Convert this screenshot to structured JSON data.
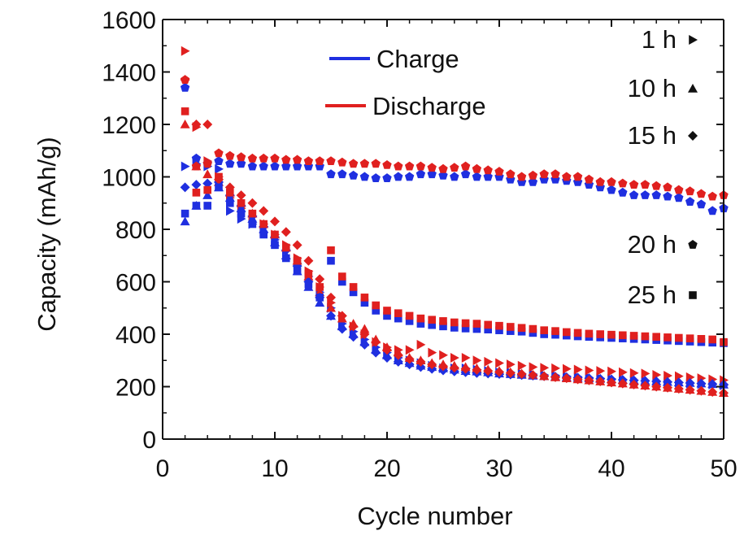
{
  "chart_data": {
    "type": "scatter",
    "xlabel": "Cycle number",
    "ylabel": "Capacity (mAh/g)",
    "xlim": [
      0,
      50
    ],
    "ylim": [
      0,
      1600
    ],
    "x_ticks": [
      0,
      10,
      20,
      30,
      40,
      50
    ],
    "y_ticks": [
      0,
      200,
      400,
      600,
      800,
      1000,
      1200,
      1400,
      1600
    ],
    "grid": false,
    "legend_colors": [
      {
        "name": "Charge",
        "color": "#1f2fe0"
      },
      {
        "name": "Discharge",
        "color": "#e0201f"
      }
    ],
    "legend_markers": [
      {
        "name": "1 h",
        "marker": "triangle-right"
      },
      {
        "name": "10 h",
        "marker": "triangle-up"
      },
      {
        "name": "15 h",
        "marker": "diamond"
      },
      {
        "name": "20 h",
        "marker": "pentagon"
      },
      {
        "name": "25 h",
        "marker": "square"
      }
    ],
    "series": [
      {
        "name": "1 h Charge",
        "marker": "triangle-right",
        "color": "#1f2fe0",
        "x": [
          2,
          3,
          4,
          5,
          6,
          7,
          8,
          9,
          10,
          11,
          12,
          13,
          14,
          15,
          16,
          17,
          18,
          19,
          20,
          21,
          22,
          23,
          24,
          25,
          26,
          27,
          28,
          29,
          30,
          31,
          32,
          33,
          34,
          35,
          36,
          37,
          38,
          39,
          40,
          41,
          42,
          43,
          44,
          45,
          46,
          47,
          48,
          49,
          50
        ],
        "y": [
          1040,
          1050,
          1040,
          1030,
          870,
          840,
          820,
          790,
          760,
          720,
          670,
          620,
          560,
          500,
          440,
          410,
          380,
          350,
          330,
          310,
          300,
          290,
          280,
          270,
          270,
          270,
          265,
          260,
          255,
          255,
          250,
          248,
          245,
          243,
          240,
          238,
          235,
          232,
          230,
          228,
          225,
          222,
          220,
          218,
          215,
          212,
          210,
          208,
          205
        ]
      },
      {
        "name": "1 h Discharge",
        "marker": "triangle-right",
        "color": "#e0201f",
        "x": [
          2,
          3,
          4,
          5,
          6,
          7,
          8,
          9,
          10,
          11,
          12,
          13,
          14,
          15,
          16,
          17,
          18,
          19,
          20,
          21,
          22,
          23,
          24,
          25,
          26,
          27,
          28,
          29,
          30,
          31,
          32,
          33,
          34,
          35,
          36,
          37,
          38,
          39,
          40,
          41,
          42,
          43,
          44,
          45,
          46,
          47,
          48,
          49,
          50
        ],
        "y": [
          1480,
          1190,
          1060,
          1000,
          920,
          880,
          850,
          820,
          780,
          740,
          690,
          640,
          580,
          520,
          470,
          430,
          400,
          370,
          350,
          340,
          340,
          360,
          330,
          320,
          310,
          310,
          300,
          295,
          290,
          285,
          280,
          275,
          272,
          270,
          268,
          265,
          262,
          260,
          258,
          255,
          252,
          250,
          245,
          242,
          240,
          236,
          232,
          228,
          225
        ]
      },
      {
        "name": "10 h Charge",
        "marker": "triangle-up",
        "color": "#1f2fe0",
        "x": [
          2,
          3,
          4,
          5,
          6,
          7,
          8,
          9,
          10,
          11,
          12,
          13,
          14,
          15,
          16,
          17,
          18,
          19,
          20,
          21,
          22,
          23,
          24,
          25,
          26,
          27,
          28,
          29,
          30,
          31,
          32,
          33,
          34,
          35,
          36,
          37,
          38,
          39,
          40,
          41,
          42,
          43,
          44,
          45,
          46,
          47,
          48,
          49,
          50
        ],
        "y": [
          830,
          890,
          930,
          960,
          920,
          880,
          840,
          800,
          750,
          700,
          640,
          580,
          520,
          470,
          430,
          400,
          370,
          340,
          320,
          300,
          290,
          280,
          275,
          270,
          265,
          260,
          258,
          255,
          250,
          248,
          245,
          242,
          240,
          238,
          236,
          234,
          232,
          230,
          228,
          226,
          224,
          222,
          220,
          218,
          216,
          214,
          212,
          210,
          208
        ]
      },
      {
        "name": "10 h Discharge",
        "marker": "triangle-up",
        "color": "#e0201f",
        "x": [
          2,
          3,
          4,
          5,
          6,
          7,
          8,
          9,
          10,
          11,
          12,
          13,
          14,
          15,
          16,
          17,
          18,
          19,
          20,
          21,
          22,
          23,
          24,
          25,
          26,
          27,
          28,
          29,
          30,
          31,
          32,
          33,
          34,
          35,
          36,
          37,
          38,
          39,
          40,
          41,
          42,
          43,
          44,
          45,
          46,
          47,
          48,
          49,
          50
        ],
        "y": [
          1200,
          1040,
          1010,
          980,
          940,
          900,
          860,
          820,
          780,
          730,
          680,
          620,
          560,
          500,
          460,
          440,
          420,
          380,
          350,
          330,
          310,
          300,
          290,
          285,
          280,
          275,
          270,
          265,
          260,
          255,
          250,
          245,
          240,
          236,
          232,
          228,
          224,
          220,
          216,
          212,
          208,
          204,
          200,
          196,
          192,
          188,
          184,
          180,
          176
        ]
      },
      {
        "name": "15 h Charge",
        "marker": "diamond",
        "color": "#1f2fe0",
        "x": [
          2,
          3,
          4,
          5,
          6,
          7,
          8,
          9,
          10,
          11,
          12,
          13,
          14,
          15,
          16,
          17,
          18,
          19,
          20,
          21,
          22,
          23,
          24,
          25,
          26,
          27,
          28,
          29,
          30,
          31,
          32,
          33,
          34,
          35,
          36,
          37,
          38,
          39,
          40,
          41,
          42,
          43,
          44,
          45,
          46,
          47,
          48,
          49,
          50
        ],
        "y": [
          960,
          970,
          975,
          980,
          930,
          890,
          850,
          810,
          770,
          720,
          660,
          600,
          540,
          470,
          420,
          390,
          360,
          330,
          310,
          295,
          285,
          275,
          268,
          262,
          258,
          255,
          252,
          250,
          248,
          246,
          244,
          242,
          240,
          238,
          236,
          234,
          232,
          230,
          228,
          226,
          224,
          222,
          220,
          218,
          216,
          214,
          212,
          210,
          208
        ]
      },
      {
        "name": "15 h Discharge",
        "marker": "diamond",
        "color": "#e0201f",
        "x": [
          2,
          3,
          4,
          5,
          6,
          7,
          8,
          9,
          10,
          11,
          12,
          13,
          14,
          15,
          16,
          17,
          18,
          19,
          20,
          21,
          22,
          23,
          24,
          25,
          26,
          27,
          28,
          29,
          30,
          31,
          32,
          33,
          34,
          35,
          36,
          37,
          38,
          39,
          40,
          41,
          42,
          43,
          44,
          45,
          46,
          47,
          48,
          49,
          50
        ],
        "y": [
          1370,
          1200,
          1200,
          990,
          960,
          930,
          900,
          870,
          830,
          790,
          740,
          680,
          610,
          540,
          470,
          430,
          400,
          370,
          340,
          320,
          305,
          295,
          285,
          278,
          272,
          268,
          264,
          260,
          256,
          252,
          248,
          244,
          240,
          236,
          232,
          228,
          224,
          220,
          216,
          212,
          208,
          204,
          200,
          196,
          192,
          188,
          184,
          180,
          176
        ]
      },
      {
        "name": "20 h Charge",
        "marker": "pentagon",
        "color": "#1f2fe0",
        "x": [
          2,
          3,
          4,
          5,
          6,
          7,
          8,
          9,
          10,
          11,
          12,
          13,
          14,
          15,
          16,
          17,
          18,
          19,
          20,
          21,
          22,
          23,
          24,
          25,
          26,
          27,
          28,
          29,
          30,
          31,
          32,
          33,
          34,
          35,
          36,
          37,
          38,
          39,
          40,
          41,
          42,
          43,
          44,
          45,
          46,
          47,
          48,
          49,
          50
        ],
        "y": [
          1340,
          1070,
          1050,
          1060,
          1050,
          1050,
          1040,
          1040,
          1040,
          1040,
          1040,
          1040,
          1040,
          1010,
          1010,
          1005,
          1000,
          995,
          995,
          1000,
          1000,
          1010,
          1010,
          1005,
          1000,
          1010,
          1000,
          1000,
          1000,
          990,
          980,
          980,
          990,
          990,
          985,
          980,
          970,
          960,
          950,
          940,
          930,
          930,
          930,
          925,
          920,
          905,
          895,
          870,
          880
        ]
      },
      {
        "name": "20 h Discharge",
        "marker": "pentagon",
        "color": "#e0201f",
        "x": [
          2,
          3,
          4,
          5,
          6,
          7,
          8,
          9,
          10,
          11,
          12,
          13,
          14,
          15,
          16,
          17,
          18,
          19,
          20,
          21,
          22,
          23,
          24,
          25,
          26,
          27,
          28,
          29,
          30,
          31,
          32,
          33,
          34,
          35,
          36,
          37,
          38,
          39,
          40,
          41,
          42,
          43,
          44,
          45,
          46,
          47,
          48,
          49,
          50
        ],
        "y": [
          1370,
          1040,
          1050,
          1090,
          1080,
          1075,
          1070,
          1070,
          1070,
          1065,
          1065,
          1060,
          1060,
          1060,
          1055,
          1050,
          1050,
          1050,
          1045,
          1040,
          1040,
          1040,
          1035,
          1030,
          1035,
          1040,
          1030,
          1025,
          1020,
          1010,
          1000,
          1005,
          1010,
          1010,
          1000,
          1000,
          990,
          980,
          980,
          975,
          970,
          970,
          965,
          960,
          950,
          945,
          935,
          925,
          930
        ]
      },
      {
        "name": "25 h Charge",
        "marker": "square",
        "color": "#1f2fe0",
        "x": [
          2,
          3,
          4,
          5,
          6,
          7,
          8,
          9,
          10,
          11,
          12,
          13,
          14,
          15,
          16,
          17,
          18,
          19,
          20,
          21,
          22,
          23,
          24,
          25,
          26,
          27,
          28,
          29,
          30,
          31,
          32,
          33,
          34,
          35,
          36,
          37,
          38,
          39,
          40,
          41,
          42,
          43,
          44,
          45,
          46,
          47,
          48,
          49,
          50
        ],
        "y": [
          860,
          890,
          890,
          960,
          900,
          860,
          820,
          780,
          740,
          690,
          640,
          590,
          540,
          680,
          600,
          560,
          520,
          490,
          470,
          460,
          450,
          440,
          435,
          430,
          425,
          422,
          420,
          418,
          415,
          412,
          410,
          405,
          400,
          398,
          395,
          392,
          390,
          388,
          386,
          384,
          382,
          380,
          378,
          376,
          374,
          372,
          370,
          368,
          366
        ]
      },
      {
        "name": "25 h Discharge",
        "marker": "square",
        "color": "#e0201f",
        "x": [
          2,
          3,
          4,
          5,
          6,
          7,
          8,
          9,
          10,
          11,
          12,
          13,
          14,
          15,
          16,
          17,
          18,
          19,
          20,
          21,
          22,
          23,
          24,
          25,
          26,
          27,
          28,
          29,
          30,
          31,
          32,
          33,
          34,
          35,
          36,
          37,
          38,
          39,
          40,
          41,
          42,
          43,
          44,
          45,
          46,
          47,
          48,
          49,
          50
        ],
        "y": [
          1250,
          940,
          950,
          1000,
          940,
          900,
          860,
          820,
          780,
          730,
          680,
          630,
          580,
          720,
          620,
          580,
          540,
          510,
          490,
          480,
          470,
          460,
          455,
          450,
          445,
          442,
          440,
          436,
          432,
          428,
          424,
          420,
          415,
          412,
          408,
          405,
          402,
          400,
          398,
          396,
          394,
          392,
          390,
          388,
          386,
          384,
          382,
          380,
          370
        ]
      }
    ]
  }
}
